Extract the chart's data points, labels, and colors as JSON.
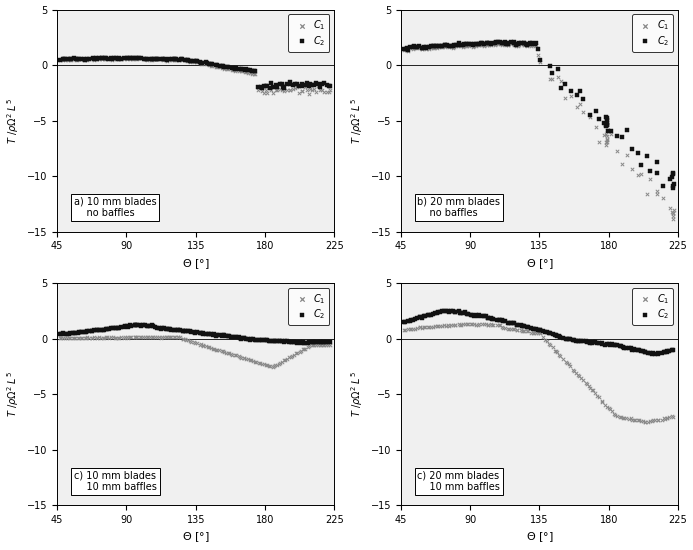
{
  "xlim": [
    45,
    225
  ],
  "ylim": [
    -15,
    5
  ],
  "xticks": [
    45,
    90,
    135,
    180,
    225
  ],
  "yticks": [
    -15,
    -10,
    -5,
    0,
    5
  ],
  "panels": [
    {
      "label": "a) 10 mm blades\n    no baffles"
    },
    {
      "label": "b) 20 mm blades\n    no baffles"
    },
    {
      "label": "c) 10 mm blades\n    10 mm baffles"
    },
    {
      "label": "c) 20 mm blades\n    10 mm baffles"
    }
  ],
  "c1_color": "#888888",
  "c2_color": "#111111",
  "bg_color": "#f0f0f0"
}
